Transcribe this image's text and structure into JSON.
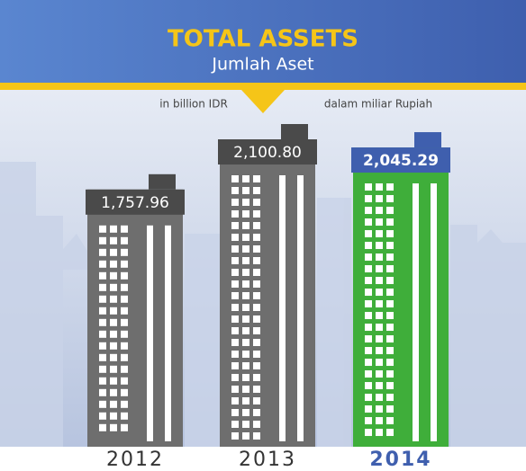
{
  "chart_data": {
    "type": "bar",
    "title": "TOTAL ASSETS",
    "subtitle": "Jumlah Aset",
    "unit_label": "in billion IDR",
    "unit_label_local": "dalam miliar Rupiah",
    "categories": [
      "2012",
      "2013",
      "2014"
    ],
    "values": [
      1757.96,
      2100.8,
      2045.29
    ],
    "value_labels": [
      "1,757.96",
      "2,100.80",
      "2,045.29"
    ],
    "colors": [
      "#6e6e6e",
      "#6e6e6e",
      "#3fae3a"
    ],
    "label_colors": [
      "#4a4a4a",
      "#4a4a4a",
      "#3f5fae"
    ]
  }
}
